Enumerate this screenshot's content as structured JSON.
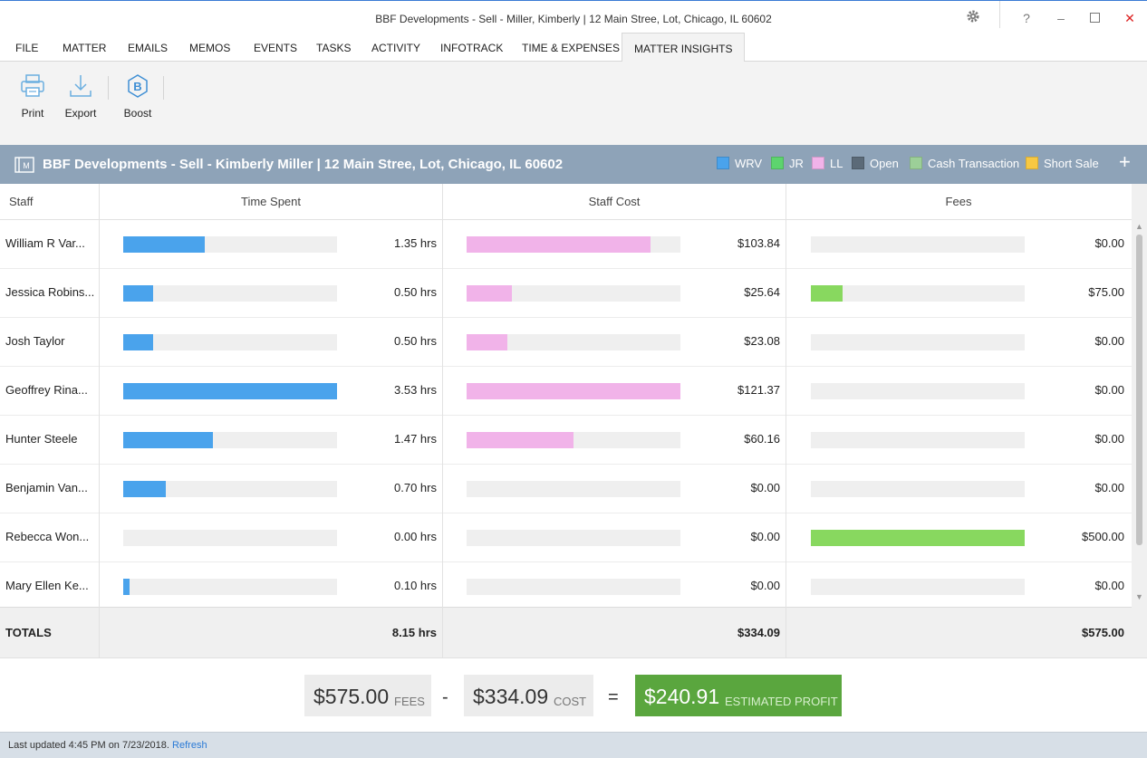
{
  "window": {
    "title": "BBF Developments - Sell - Miller, Kimberly | 12 Main Stree, Lot, Chicago, IL 60602"
  },
  "menu": [
    "FILE",
    "MATTER",
    "EMAILS",
    "MEMOS",
    "EVENTS",
    "TASKS",
    "ACTIVITY",
    "INFOTRACK",
    "TIME & EXPENSES",
    "MATTER INSIGHTS"
  ],
  "ribbon": {
    "print": "Print",
    "export": "Export",
    "boost": "Boost"
  },
  "header": {
    "title": "BBF Developments - Sell - Kimberly Miller | 12 Main Stree, Lot, Chicago, IL 60602",
    "legend": [
      {
        "label": "WRV",
        "color": "#4aa3ec"
      },
      {
        "label": "JR",
        "color": "#5dd46e"
      },
      {
        "label": "LL",
        "color": "#f1b3e9"
      },
      {
        "label": "Open",
        "color": "#5b6a78"
      },
      {
        "label": "Cash Transaction",
        "color": "#9ccf98"
      },
      {
        "label": "Short Sale",
        "color": "#f7c843"
      }
    ]
  },
  "table": {
    "columns": {
      "staff": "Staff",
      "time": "Time Spent",
      "cost": "Staff Cost",
      "fees": "Fees"
    },
    "colors": {
      "time": "#4aa3ec",
      "cost": "#f1b3e9",
      "fees": "#88d85f"
    },
    "rows": [
      {
        "name": "William R Var...",
        "time": "1.35 hrs",
        "time_fraction": 0.38,
        "cost": "$103.84",
        "cost_fraction": 0.86,
        "fees": "$0.00",
        "fees_fraction": 0
      },
      {
        "name": "Jessica Robins...",
        "time": "0.50 hrs",
        "time_fraction": 0.14,
        "cost": "$25.64",
        "cost_fraction": 0.21,
        "fees": "$75.00",
        "fees_fraction": 0.15
      },
      {
        "name": "Josh Taylor",
        "time": "0.50 hrs",
        "time_fraction": 0.14,
        "cost": "$23.08",
        "cost_fraction": 0.19,
        "fees": "$0.00",
        "fees_fraction": 0
      },
      {
        "name": "Geoffrey Rina...",
        "time": "3.53 hrs",
        "time_fraction": 1.0,
        "cost": "$121.37",
        "cost_fraction": 1.0,
        "fees": "$0.00",
        "fees_fraction": 0
      },
      {
        "name": "Hunter  Steele",
        "time": "1.47 hrs",
        "time_fraction": 0.42,
        "cost": "$60.16",
        "cost_fraction": 0.5,
        "fees": "$0.00",
        "fees_fraction": 0
      },
      {
        "name": "Benjamin Van...",
        "time": "0.70 hrs",
        "time_fraction": 0.2,
        "cost": "$0.00",
        "cost_fraction": 0,
        "fees": "$0.00",
        "fees_fraction": 0
      },
      {
        "name": "Rebecca Won...",
        "time": "0.00 hrs",
        "time_fraction": 0,
        "cost": "$0.00",
        "cost_fraction": 0,
        "fees": "$500.00",
        "fees_fraction": 1.0
      },
      {
        "name": "Mary Ellen Ke...",
        "time": "0.10 hrs",
        "time_fraction": 0.03,
        "cost": "$0.00",
        "cost_fraction": 0,
        "fees": "$0.00",
        "fees_fraction": 0
      }
    ],
    "totals": {
      "label": "TOTALS",
      "time": "8.15 hrs",
      "cost": "$334.09",
      "fees": "$575.00"
    }
  },
  "summary": {
    "fees_amount": "$575.00",
    "fees_label": "FEES",
    "minus": "-",
    "cost_amount": "$334.09",
    "cost_label": "COST",
    "equals": "=",
    "profit_amount": "$240.91",
    "profit_label": "ESTIMATED PROFIT"
  },
  "status": {
    "text": "Last updated 4:45 PM on 7/23/2018.",
    "refresh": "Refresh"
  }
}
